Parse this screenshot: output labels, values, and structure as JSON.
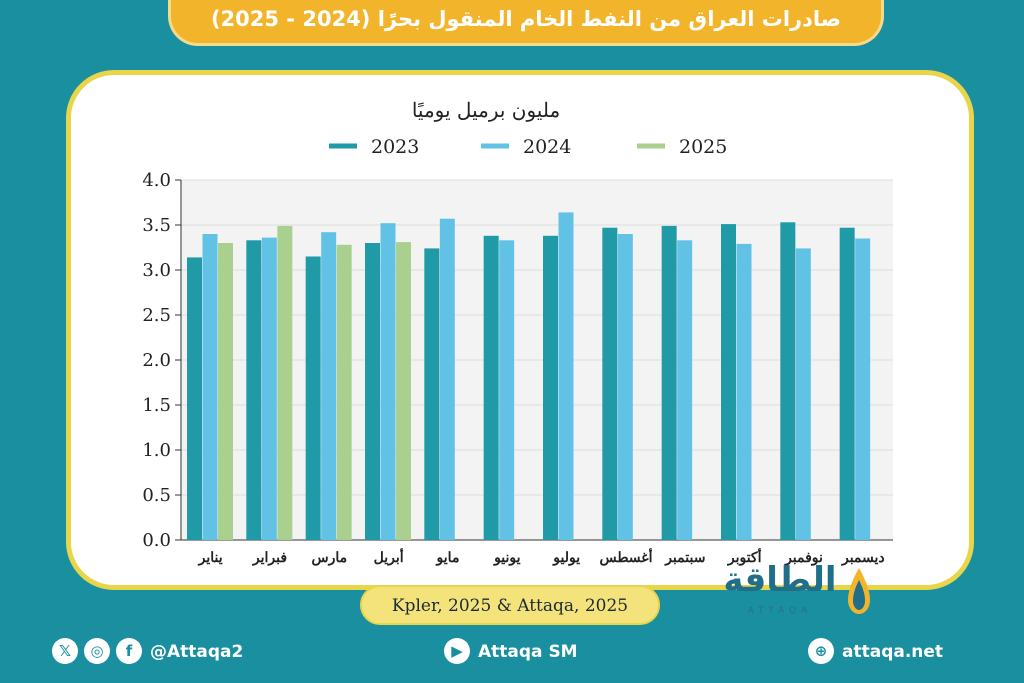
{
  "header": {
    "title": "صادرات العراق من النفط الخام المنقول بحرًا (2024 - 2025)"
  },
  "colors": {
    "s2023": "#1f9aa6",
    "s2024": "#62c2e6",
    "s2025": "#a9d08e",
    "accent": "#f2b42a",
    "background": "#1a8fa0"
  },
  "chart_data": {
    "type": "bar",
    "title": "",
    "ylabel": "مليون برميل يوميًا",
    "xlabel": "",
    "ylim": [
      0,
      4
    ],
    "yticks": [
      "0.0",
      "0.5",
      "1.0",
      "1.5",
      "2.0",
      "2.5",
      "3.0",
      "3.5",
      "4.0"
    ],
    "grid": true,
    "legend_position": "top",
    "categories": [
      "يناير",
      "فبراير",
      "مارس",
      "أبريل",
      "مايو",
      "يونيو",
      "يوليو",
      "أغسطس",
      "سبتمبر",
      "أكتوبر",
      "نوفمبر",
      "ديسمبر"
    ],
    "series": [
      {
        "name": "2023",
        "color": "#1f9aa6",
        "values": [
          3.14,
          3.33,
          3.15,
          3.3,
          3.24,
          3.38,
          3.38,
          3.47,
          3.49,
          3.51,
          3.53,
          3.47
        ]
      },
      {
        "name": "2024",
        "color": "#62c2e6",
        "values": [
          3.4,
          3.36,
          3.42,
          3.52,
          3.57,
          3.33,
          3.64,
          3.4,
          3.33,
          3.29,
          3.24,
          3.35
        ]
      },
      {
        "name": "2025",
        "color": "#a9d08e",
        "values": [
          3.3,
          3.49,
          3.28,
          3.31,
          null,
          null,
          null,
          null,
          null,
          null,
          null,
          null
        ]
      }
    ]
  },
  "source": {
    "text": "Kpler, 2025 & Attaqa, 2025"
  },
  "logo": {
    "arabic": "الطاقة",
    "latin": "ATTAQA"
  },
  "footer": {
    "twitter_icon": "x-icon",
    "instagram_icon": "instagram-icon",
    "facebook_icon": "facebook-icon",
    "handle": "@Attaqa2",
    "youtube_icon": "youtube-icon",
    "youtube": "Attaqa SM",
    "globe_icon": "globe-icon",
    "website": "attaqa.net"
  }
}
